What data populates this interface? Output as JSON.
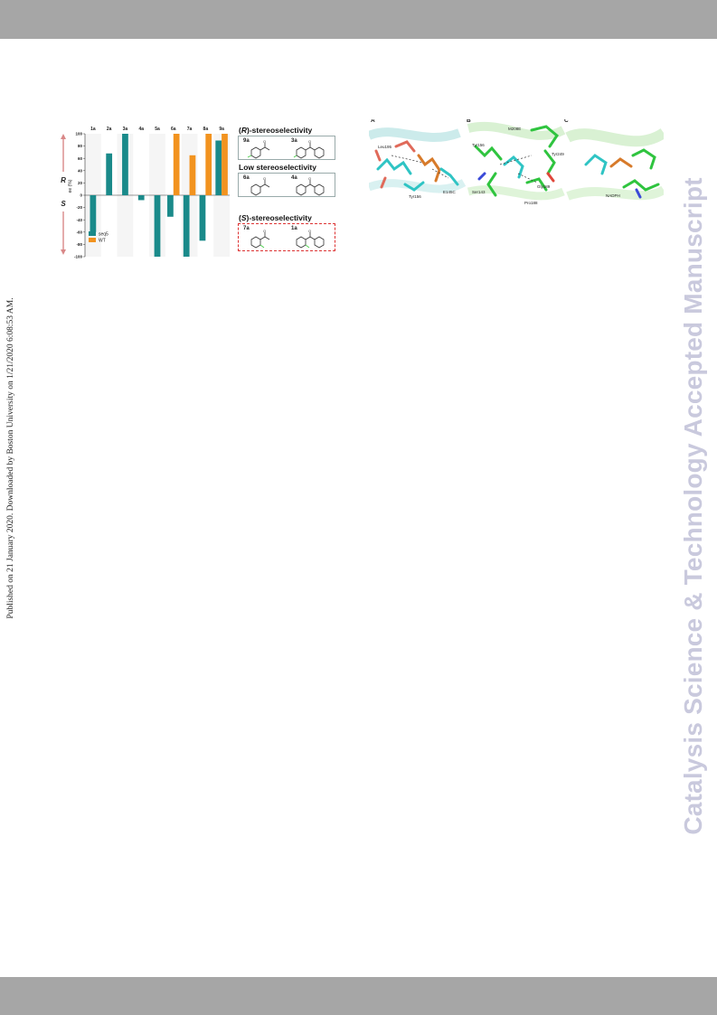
{
  "page": {
    "side_note": "Published on 21 January 2020. Downloaded by Boston University on 1/21/2020 6:08:53 AM.",
    "watermark": "Catalysis Science & Technology Accepted Manuscript",
    "band_color": "#a6a6a6",
    "watermark_color": "#c9c9dd"
  },
  "chart_data": {
    "type": "bar",
    "categories": [
      "1a",
      "2a",
      "3a",
      "4a",
      "5a",
      "6a",
      "7a",
      "8a",
      "9a"
    ],
    "series": [
      {
        "name": "seq5",
        "color": "#1a8a8a",
        "values": [
          -60,
          68,
          100,
          -8,
          -100,
          -35,
          -100,
          -74,
          89
        ]
      },
      {
        "name": "WT",
        "color": "#f2931f",
        "values": [
          null,
          null,
          null,
          null,
          null,
          100,
          65,
          100,
          100
        ]
      }
    ],
    "ylabel": "ee (%)",
    "ylim": [
      -100,
      100
    ],
    "yticks": [
      100,
      80,
      60,
      40,
      20,
      0,
      -20,
      -40,
      -60,
      -80,
      -100
    ],
    "side_labels": {
      "top": "R",
      "bottom": "S"
    },
    "legend_position": "bottom-left"
  },
  "structures": {
    "groups": [
      {
        "heading_prefix": "(",
        "heading_letter": "R",
        "heading_suffix": ")-stereoselectivity",
        "compounds": [
          "9a",
          "3a"
        ]
      },
      {
        "heading_prefix": "",
        "heading_letter": "",
        "heading_suffix": "Low stereoselectivity",
        "compounds": [
          "6a",
          "4a"
        ]
      },
      {
        "heading_prefix": "(",
        "heading_letter": "S",
        "heading_suffix": ")-stereoselectivity",
        "compounds": [
          "7a",
          "1a"
        ]
      }
    ]
  },
  "molecular_panels": {
    "letters": [
      "A",
      "B",
      "C"
    ],
    "residues": [
      "Leu195",
      "Tyr156",
      "E145C",
      "Tyr156",
      "Ser143",
      "M208E",
      "Tyr249",
      "Gly189",
      "Pro188",
      "NADPH"
    ]
  }
}
